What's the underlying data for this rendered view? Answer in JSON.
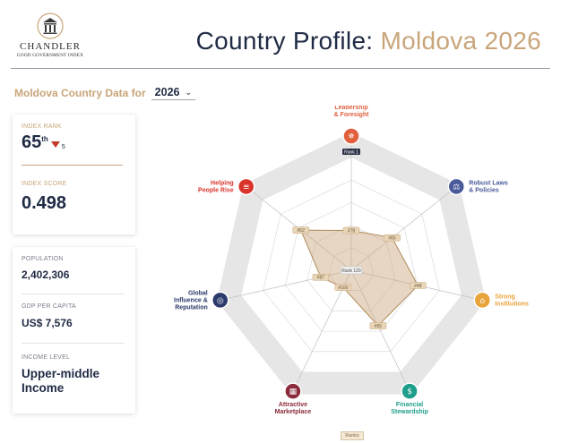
{
  "brand": {
    "name": "CHANDLER",
    "subtitle": "GOOD GOVERNMENT INDEX"
  },
  "header": {
    "title_prefix": "Country Profile: ",
    "title_country": "Moldova 2026"
  },
  "selector": {
    "label": "Moldova Country Data for",
    "year": "2026"
  },
  "summary": {
    "index_rank_label": "INDEX RANK",
    "index_rank": "65",
    "index_rank_suffix": "th",
    "rank_change": "5",
    "rank_change_direction": "down",
    "index_score_label": "INDEX SCORE",
    "index_score": "0.498"
  },
  "profile": {
    "population_label": "POPULATION",
    "population": "2,402,306",
    "gdp_label": "GDP PER CAPITA",
    "gdp": "US$ 7,576",
    "income_label": "INCOME LEVEL",
    "income": "Upper-middle Income"
  },
  "chart_data": {
    "type": "radar",
    "center_label": "Rank 120",
    "max_label": "Rank 1",
    "scale": {
      "best_rank": 1,
      "worst_rank": 120
    },
    "axes": [
      {
        "name": "Leadership & Foresight",
        "line1": "Leadership",
        "line2": "& Foresight",
        "rank": 78,
        "rank_label": "#78",
        "color": "#e0603e",
        "icon": "lightbulb-icon"
      },
      {
        "name": "Robust Laws & Policies",
        "line1": "Robust Laws",
        "line2": "& Policies",
        "rank": 65,
        "rank_label": "#65",
        "color": "#4a5a9a",
        "icon": "scales-icon"
      },
      {
        "name": "Strong Institutions",
        "line1": "Strong",
        "line2": "Institutions",
        "rank": 48,
        "rank_label": "#48",
        "color": "#e8a33a",
        "icon": "institution-icon"
      },
      {
        "name": "Financial Stewardship",
        "line1": "Financial",
        "line2": "Stewardship",
        "rank": 55,
        "rank_label": "#55",
        "color": "#1f9e8c",
        "icon": "money-icon"
      },
      {
        "name": "Attractive Marketplace",
        "line1": "Attractive",
        "line2": "Marketplace",
        "rank": 100,
        "rank_label": "#100",
        "color": "#8a2a3a",
        "icon": "marketplace-icon"
      },
      {
        "name": "Global Influence & Reputation",
        "line1": "Global",
        "line2": "Influence &",
        "line3": "Reputation",
        "rank": 87,
        "rank_label": "#87",
        "color": "#2a3a6a",
        "icon": "globe-icon"
      },
      {
        "name": "Helping People Rise",
        "line1": "Helping",
        "line2": "People Rise",
        "rank": 52,
        "rank_label": "#52",
        "color": "#d9342b",
        "icon": "ladder-icon"
      }
    ],
    "fill_color": "#c9a57a",
    "legend_button": "Ranks"
  }
}
